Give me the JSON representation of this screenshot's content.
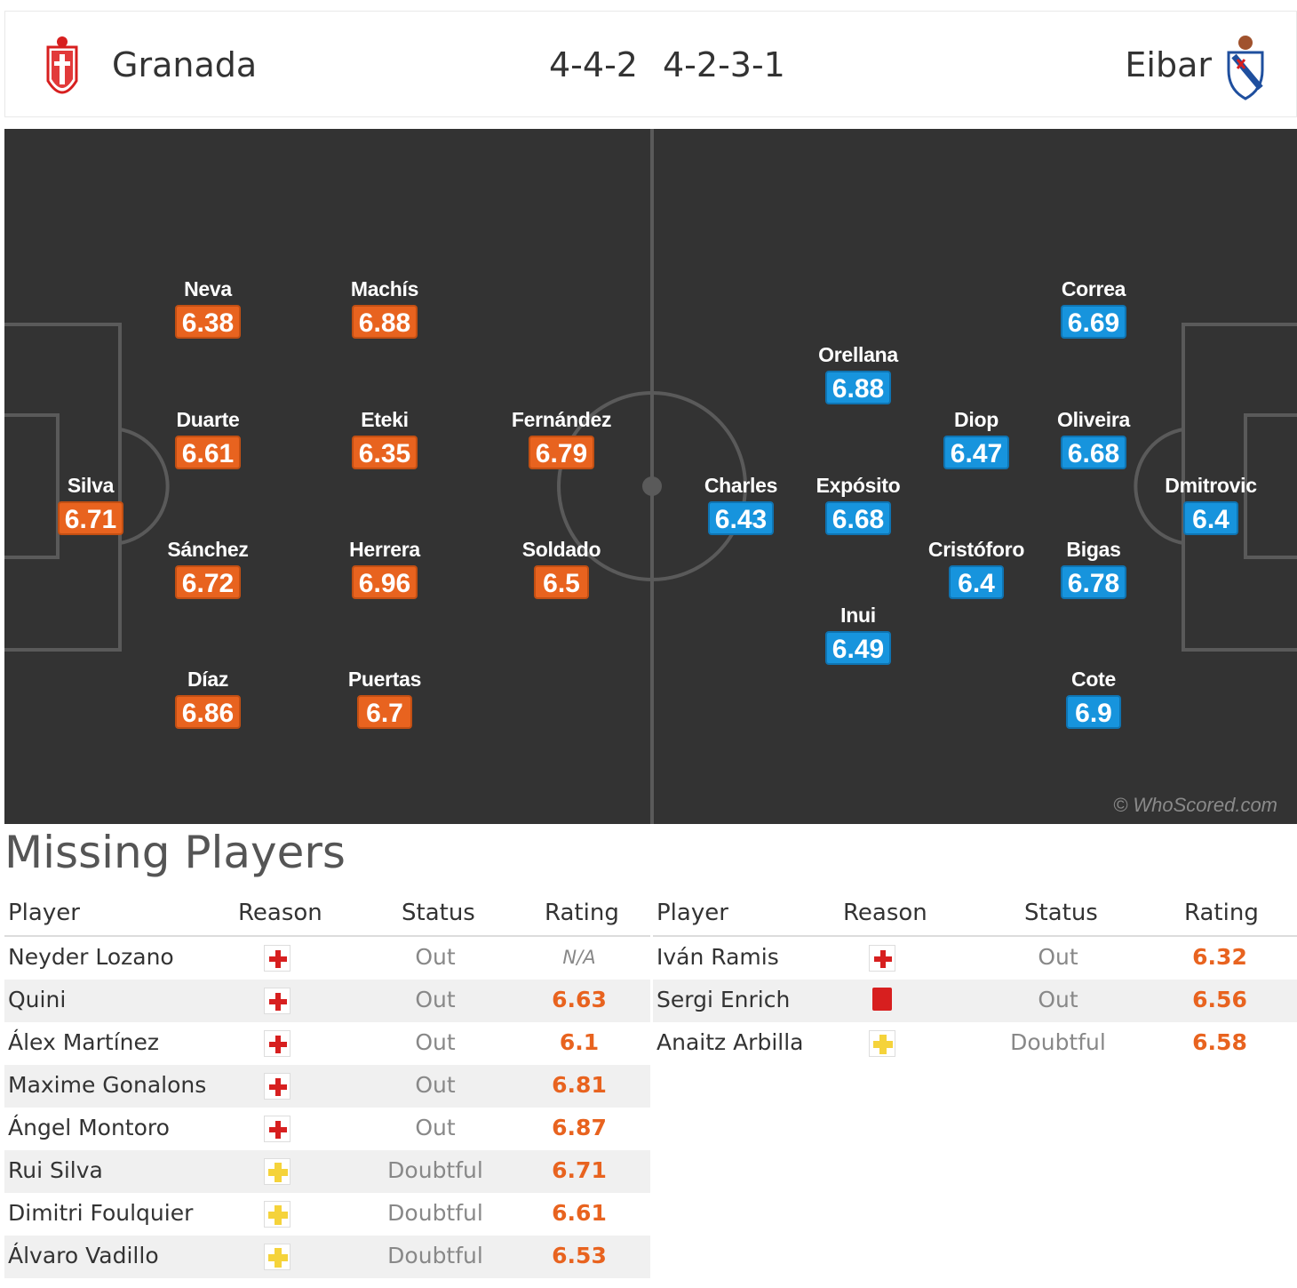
{
  "header": {
    "home_team": "Granada",
    "away_team": "Eibar",
    "home_formation": "4-4-2",
    "away_formation": "4-2-3-1",
    "home_crest_icon": "granada-crest-icon",
    "away_crest_icon": "eibar-crest-icon"
  },
  "colors": {
    "pitch": "#333333",
    "home_rating": "#e8631f",
    "away_rating": "#1794dd"
  },
  "pitch": {
    "watermark": "© WhoScored.com",
    "home_players": [
      {
        "name": "Silva",
        "rating": "6.71"
      },
      {
        "name": "Neva",
        "rating": "6.38"
      },
      {
        "name": "Duarte",
        "rating": "6.61"
      },
      {
        "name": "Sánchez",
        "rating": "6.72"
      },
      {
        "name": "Díaz",
        "rating": "6.86"
      },
      {
        "name": "Machís",
        "rating": "6.88"
      },
      {
        "name": "Eteki",
        "rating": "6.35"
      },
      {
        "name": "Herrera",
        "rating": "6.96"
      },
      {
        "name": "Puertas",
        "rating": "6.7"
      },
      {
        "name": "Fernández",
        "rating": "6.79"
      },
      {
        "name": "Soldado",
        "rating": "6.5"
      }
    ],
    "away_players": [
      {
        "name": "Dmitrovic",
        "rating": "6.4"
      },
      {
        "name": "Correa",
        "rating": "6.69"
      },
      {
        "name": "Oliveira",
        "rating": "6.68"
      },
      {
        "name": "Bigas",
        "rating": "6.78"
      },
      {
        "name": "Cote",
        "rating": "6.9"
      },
      {
        "name": "Diop",
        "rating": "6.47"
      },
      {
        "name": "Cristóforo",
        "rating": "6.4"
      },
      {
        "name": "Orellana",
        "rating": "6.88"
      },
      {
        "name": "Expósito",
        "rating": "6.68"
      },
      {
        "name": "Inui",
        "rating": "6.49"
      },
      {
        "name": "Charles",
        "rating": "6.43"
      }
    ]
  },
  "missing": {
    "title": "Missing Players",
    "columns": {
      "player": "Player",
      "reason": "Reason",
      "status": "Status",
      "rating": "Rating"
    },
    "home": [
      {
        "player": "Neyder Lozano",
        "reason": "injury",
        "status": "Out",
        "rating": "N/A"
      },
      {
        "player": "Quini",
        "reason": "injury",
        "status": "Out",
        "rating": "6.63"
      },
      {
        "player": "Álex Martínez",
        "reason": "injury",
        "status": "Out",
        "rating": "6.1"
      },
      {
        "player": "Maxime Gonalons",
        "reason": "injury",
        "status": "Out",
        "rating": "6.81"
      },
      {
        "player": "Ángel Montoro",
        "reason": "injury",
        "status": "Out",
        "rating": "6.87"
      },
      {
        "player": "Rui Silva",
        "reason": "doubtful",
        "status": "Doubtful",
        "rating": "6.71"
      },
      {
        "player": "Dimitri Foulquier",
        "reason": "doubtful",
        "status": "Doubtful",
        "rating": "6.61"
      },
      {
        "player": "Álvaro Vadillo",
        "reason": "doubtful",
        "status": "Doubtful",
        "rating": "6.53"
      }
    ],
    "away": [
      {
        "player": "Iván Ramis",
        "reason": "injury",
        "status": "Out",
        "rating": "6.32"
      },
      {
        "player": "Sergi Enrich",
        "reason": "red-card",
        "status": "Out",
        "rating": "6.56"
      },
      {
        "player": "Anaitz Arbilla",
        "reason": "doubtful",
        "status": "Doubtful",
        "rating": "6.58"
      }
    ]
  }
}
